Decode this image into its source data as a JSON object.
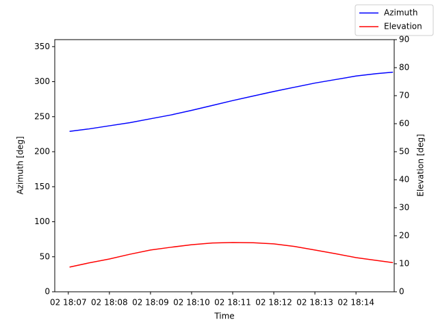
{
  "chart_data": {
    "type": "line",
    "x_label": "Time",
    "y_label": "Azimuth [deg]",
    "y2_label": "Elevation [deg]",
    "x": [
      1087.03,
      1087.5,
      1088,
      1088.5,
      1089,
      1089.5,
      1090,
      1090.5,
      1091,
      1091.5,
      1092,
      1092.5,
      1093,
      1093.5,
      1094,
      1094.5,
      1094.9
    ],
    "series": [
      {
        "name": "Azimuth",
        "color": "#0000ff",
        "axis": "y",
        "values": [
          229,
          232.5,
          237,
          241.5,
          247,
          252.5,
          259,
          266,
          273,
          279.5,
          286,
          292,
          298,
          303,
          308,
          311.5,
          313.5
        ]
      },
      {
        "name": "Elevation",
        "color": "#ff0000",
        "axis": "y2",
        "values": [
          8.8,
          10.3,
          11.7,
          13.4,
          14.9,
          15.9,
          16.8,
          17.4,
          17.6,
          17.5,
          17.1,
          16.2,
          14.9,
          13.6,
          12.2,
          11.2,
          10.4
        ]
      }
    ],
    "xlim": [
      1086.67,
      1094.93
    ],
    "xticks": [
      {
        "value": 1087,
        "label": "02 18:07"
      },
      {
        "value": 1088,
        "label": "02 18:08"
      },
      {
        "value": 1089,
        "label": "02 18:09"
      },
      {
        "value": 1090,
        "label": "02 18:10"
      },
      {
        "value": 1091,
        "label": "02 18:11"
      },
      {
        "value": 1092,
        "label": "02 18:12"
      },
      {
        "value": 1093,
        "label": "02 18:13"
      },
      {
        "value": 1094,
        "label": "02 18:14"
      }
    ],
    "ylim": [
      0,
      360
    ],
    "yticks": [
      0,
      50,
      100,
      150,
      200,
      250,
      300,
      350
    ],
    "y2lim": [
      0,
      90
    ],
    "y2ticks": [
      0,
      10,
      20,
      30,
      40,
      50,
      60,
      70,
      80,
      90
    ],
    "legend": "upper right",
    "grid": false
  }
}
